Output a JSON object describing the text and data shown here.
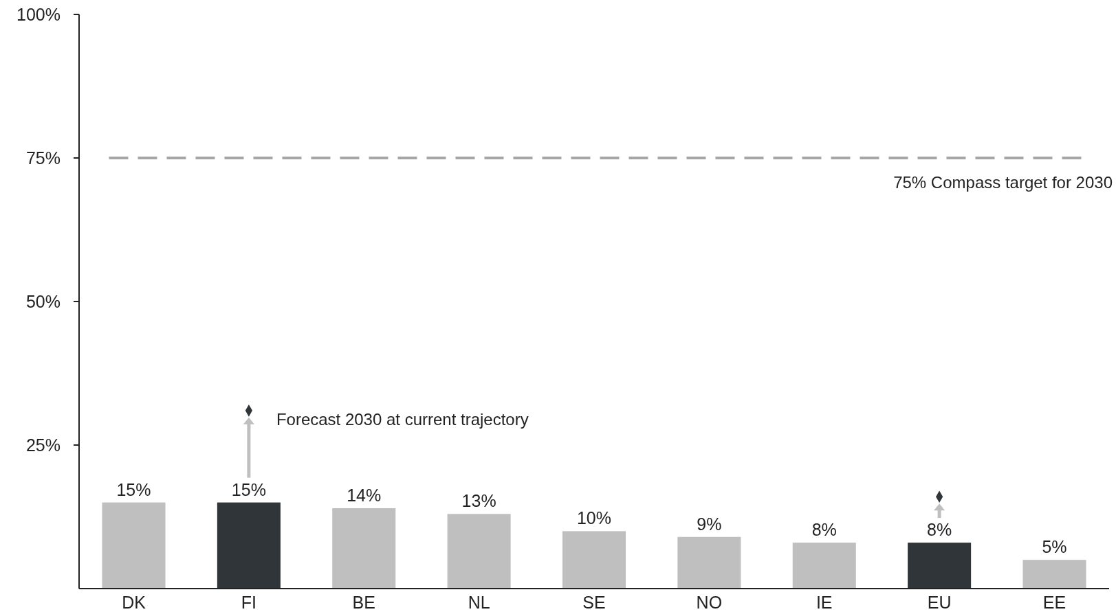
{
  "chart_data": {
    "type": "bar",
    "categories": [
      "DK",
      "FI",
      "BE",
      "NL",
      "SE",
      "NO",
      "IE",
      "EU",
      "EE"
    ],
    "series": [
      {
        "values": [
          15,
          15,
          14,
          13,
          10,
          9,
          8,
          8,
          5
        ],
        "value_labels": [
          "15%",
          "15%",
          "14%",
          "13%",
          "10%",
          "9%",
          "8%",
          "8%",
          "5%"
        ],
        "colors": [
          "#bfbfbf",
          "#2f3538",
          "#bfbfbf",
          "#bfbfbf",
          "#bfbfbf",
          "#bfbfbf",
          "#bfbfbf",
          "#2f3538",
          "#bfbfbf"
        ]
      },
      {
        "type": "scatter",
        "name": "Forecast 2030 at current trajectory",
        "x": [
          "FI",
          "EU"
        ],
        "values": [
          31,
          16
        ],
        "color": "#2f3538"
      }
    ],
    "ylim": [
      0,
      100
    ],
    "yticks": [
      {
        "value": 25,
        "label": "25%"
      },
      {
        "value": 50,
        "label": "50%"
      },
      {
        "value": 75,
        "label": "75%"
      },
      {
        "value": 100,
        "label": "100%"
      }
    ],
    "ref_lines": [
      {
        "axis": "y",
        "value": 75,
        "label": "75% Compass target for 2030",
        "color": "#a6a6a6",
        "line_style": "dashed"
      }
    ],
    "marker": "diamond",
    "grid": false
  }
}
